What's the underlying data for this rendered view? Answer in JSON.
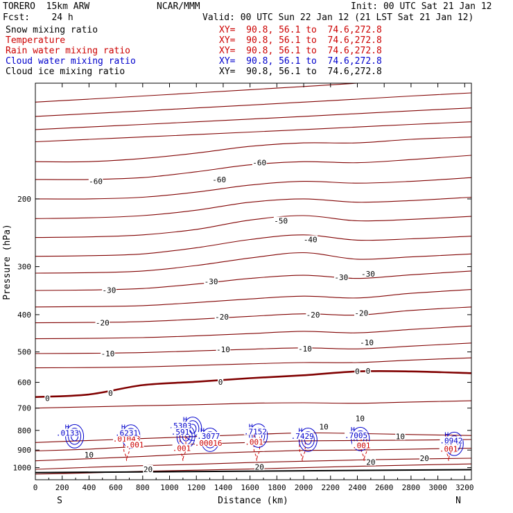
{
  "header": {
    "model": "TORERO  15km ARW",
    "center": "NCAR/MMM",
    "init": "Init: 00 UTC Sat 21 Jan 12",
    "fcst": "Fcst:    24 h",
    "valid": "Valid: 00 UTC Sun 22 Jan 12 (21 LST Sat 21 Jan 12)"
  },
  "fields": [
    {
      "name": "Snow mixing ratio",
      "xy": "XY=  90.8, 56.1 to  74.6,272.8",
      "color": "#000000"
    },
    {
      "name": "Temperature",
      "xy": "XY=  90.8, 56.1 to  74.6,272.8",
      "color": "#cc0000"
    },
    {
      "name": "Rain water mixing ratio",
      "xy": "XY=  90.8, 56.1 to  74.6,272.8",
      "color": "#cc0000"
    },
    {
      "name": "Cloud water mixing ratio",
      "xy": "XY=  90.8, 56.1 to  74.6,272.8",
      "color": "#0000cc"
    },
    {
      "name": "Cloud ice mixing ratio",
      "xy": "XY=  90.8, 56.1 to  74.6,272.8",
      "color": "#000000"
    }
  ],
  "chart_data": {
    "type": "line",
    "title": "",
    "xlabel": "Distance (km)",
    "ylabel": "Pressure (hPa)",
    "xlim": [
      0,
      3250
    ],
    "ylim": [
      1075,
      100
    ],
    "y_scale": "log",
    "x_ticks": [
      0,
      200,
      400,
      600,
      800,
      1000,
      1200,
      1400,
      1600,
      1800,
      2000,
      2200,
      2400,
      2600,
      2800,
      3000,
      3200
    ],
    "y_ticks": [
      200,
      300,
      400,
      500,
      600,
      700,
      800,
      900,
      1000
    ],
    "x_end_labels": {
      "left": "S",
      "right": "N"
    },
    "temperature_isotherms": {
      "color": "#800000",
      "x": [
        0,
        400,
        800,
        1200,
        1600,
        2000,
        2400,
        2800,
        3250
      ],
      "series": [
        {
          "name": "-60",
          "values": [
            112,
            110,
            108,
            106,
            104,
            102,
            100,
            98,
            96
          ]
        },
        {
          "name": "-60",
          "values": [
            122,
            120,
            118,
            116,
            114,
            112,
            110,
            108,
            106
          ]
        },
        {
          "name": "-60",
          "values": [
            132,
            130,
            128,
            126,
            124,
            122,
            120,
            118,
            116
          ]
        },
        {
          "name": "-60",
          "values": [
            142,
            140,
            138,
            136,
            134,
            132,
            130,
            128,
            126
          ]
        },
        {
          "name": "-60",
          "values": [
            160,
            160,
            157,
            152,
            146,
            143,
            143,
            140,
            138
          ]
        },
        {
          "name": "-60",
          "values": [
            178,
            178,
            176,
            170,
            163,
            160,
            161,
            158,
            154
          ]
        },
        {
          "name": "-60",
          "values": [
            200,
            200,
            198,
            192,
            184,
            180,
            182,
            180,
            176
          ]
        },
        {
          "name": "-50",
          "values": [
            225,
            224,
            221,
            214,
            204,
            200,
            204,
            202,
            198
          ]
        },
        {
          "name": "-50",
          "values": [
            252,
            251,
            248,
            240,
            227,
            221,
            228,
            226,
            222
          ]
        },
        {
          "name": "-40",
          "values": [
            282,
            281,
            278,
            268,
            255,
            248,
            256,
            254,
            250
          ]
        },
        {
          "name": "-30",
          "values": [
            312,
            311,
            308,
            298,
            285,
            276,
            287,
            283,
            278
          ]
        },
        {
          "name": "-30",
          "values": [
            346,
            345,
            342,
            333,
            322,
            316,
            322,
            315,
            308
          ]
        },
        {
          "name": "-30",
          "values": [
            382,
            381,
            379,
            372,
            364,
            358,
            362,
            352,
            344
          ]
        },
        {
          "name": "-20",
          "values": [
            420,
            419,
            417,
            411,
            404,
            398,
            401,
            390,
            382
          ]
        },
        {
          "name": "-20",
          "values": [
            462,
            461,
            459,
            454,
            448,
            442,
            446,
            437,
            428
          ]
        },
        {
          "name": "-10",
          "values": [
            505,
            504,
            502,
            497,
            492,
            488,
            491,
            483,
            474
          ]
        },
        {
          "name": "-10",
          "values": [
            550,
            549,
            547,
            542,
            537,
            533,
            533,
            525,
            518
          ]
        },
        {
          "name": "0",
          "values": [
            655,
            645,
            610,
            598,
            585,
            575,
            562,
            562,
            568
          ]
        },
        {
          "name": "10",
          "values": [
            700,
            695,
            690,
            686,
            680,
            678,
            680,
            675,
            670
          ]
        },
        {
          "name": "10",
          "values": [
            860,
            850,
            840,
            830,
            820,
            812,
            815,
            820,
            825
          ]
        },
        {
          "name": "10",
          "values": [
            905,
            895,
            880,
            868,
            860,
            852,
            850,
            848,
            845
          ]
        },
        {
          "name": "10",
          "values": [
            960,
            948,
            935,
            920,
            910,
            902,
            900,
            895,
            890
          ]
        },
        {
          "name": "20",
          "values": [
            1010,
            998,
            988,
            980,
            970,
            962,
            955,
            950,
            945
          ]
        },
        {
          "name": "20",
          "values": [
            1040,
            1032,
            1022,
            1015,
            1008,
            1000,
            992,
            985,
            978
          ]
        }
      ],
      "labels": [
        {
          "text": "-60",
          "x": 450,
          "p": 180
        },
        {
          "text": "-60",
          "x": 1370,
          "p": 178
        },
        {
          "text": "-60",
          "x": 1670,
          "p": 161
        },
        {
          "text": "-50",
          "x": 1830,
          "p": 228
        },
        {
          "text": "-40",
          "x": 2050,
          "p": 255
        },
        {
          "text": "-30",
          "x": 550,
          "p": 345
        },
        {
          "text": "-30",
          "x": 1310,
          "p": 328
        },
        {
          "text": "-30",
          "x": 2280,
          "p": 320
        },
        {
          "text": "-30",
          "x": 2480,
          "p": 313
        },
        {
          "text": "-20",
          "x": 500,
          "p": 420
        },
        {
          "text": "-20",
          "x": 1390,
          "p": 405
        },
        {
          "text": "-20",
          "x": 2070,
          "p": 400
        },
        {
          "text": "-20",
          "x": 2430,
          "p": 396
        },
        {
          "text": "-10",
          "x": 540,
          "p": 505
        },
        {
          "text": "-10",
          "x": 1400,
          "p": 492
        },
        {
          "text": "-10",
          "x": 2010,
          "p": 490
        },
        {
          "text": "-10",
          "x": 2470,
          "p": 472
        },
        {
          "text": "0",
          "x": 90,
          "p": 660
        },
        {
          "text": "0",
          "x": 560,
          "p": 640
        },
        {
          "text": "0",
          "x": 1380,
          "p": 599
        },
        {
          "text": "0",
          "x": 2400,
          "p": 561
        },
        {
          "text": "0",
          "x": 2480,
          "p": 560
        },
        {
          "text": "10",
          "x": 2420,
          "p": 745
        },
        {
          "text": "10",
          "x": 2150,
          "p": 782
        },
        {
          "text": "10",
          "x": 2720,
          "p": 830
        },
        {
          "text": "10",
          "x": 400,
          "p": 925
        },
        {
          "text": "20",
          "x": 2500,
          "p": 968
        },
        {
          "text": "20",
          "x": 2900,
          "p": 945
        },
        {
          "text": "20",
          "x": 1670,
          "p": 996
        },
        {
          "text": "20",
          "x": 840,
          "p": 1010
        }
      ]
    },
    "surface_pressure": {
      "x": [
        0,
        3250
      ],
      "values": [
        1030,
        1012
      ]
    },
    "rain_water_mixing_ratio": {
      "color": "#cc0000",
      "labels": [
        {
          "text": ".01043",
          "x": 680,
          "p": 842
        },
        {
          "text": ".001",
          "x": 740,
          "p": 872
        },
        {
          "text": ".001",
          "x": 1090,
          "p": 890
        },
        {
          "text": ".00016",
          "x": 1290,
          "p": 862
        },
        {
          "text": ".001",
          "x": 1630,
          "p": 857
        },
        {
          "text": ".001",
          "x": 2430,
          "p": 875
        },
        {
          "text": ".001",
          "x": 3080,
          "p": 893
        }
      ],
      "cells_x": [
        680,
        1100,
        1650,
        1990,
        2450,
        3080
      ]
    },
    "cloud_water_mixing_ratio": {
      "color": "#0000cc",
      "labels": [
        {
          "text": ".0133",
          "x": 240,
          "p": 812
        },
        {
          "text": ".6231",
          "x": 680,
          "p": 813
        },
        {
          "text": ".5303",
          "x": 1080,
          "p": 778
        },
        {
          "text": ".591",
          "x": 1080,
          "p": 808
        },
        {
          "text": ".3077",
          "x": 1290,
          "p": 828
        },
        {
          "text": ".7152",
          "x": 1640,
          "p": 805
        },
        {
          "text": ".7429",
          "x": 1990,
          "p": 828
        },
        {
          "text": ".7005",
          "x": 2390,
          "p": 825
        },
        {
          "text": ".0942",
          "x": 3100,
          "p": 850
        }
      ],
      "highs": [
        {
          "x": 220,
          "p": 795
        },
        {
          "x": 640,
          "p": 796
        },
        {
          "x": 1050,
          "p": 796
        },
        {
          "x": 1100,
          "p": 760
        },
        {
          "x": 1230,
          "p": 812
        },
        {
          "x": 1590,
          "p": 792
        },
        {
          "x": 1960,
          "p": 812
        },
        {
          "x": 2350,
          "p": 808
        },
        {
          "x": 3050,
          "p": 832
        }
      ]
    }
  }
}
